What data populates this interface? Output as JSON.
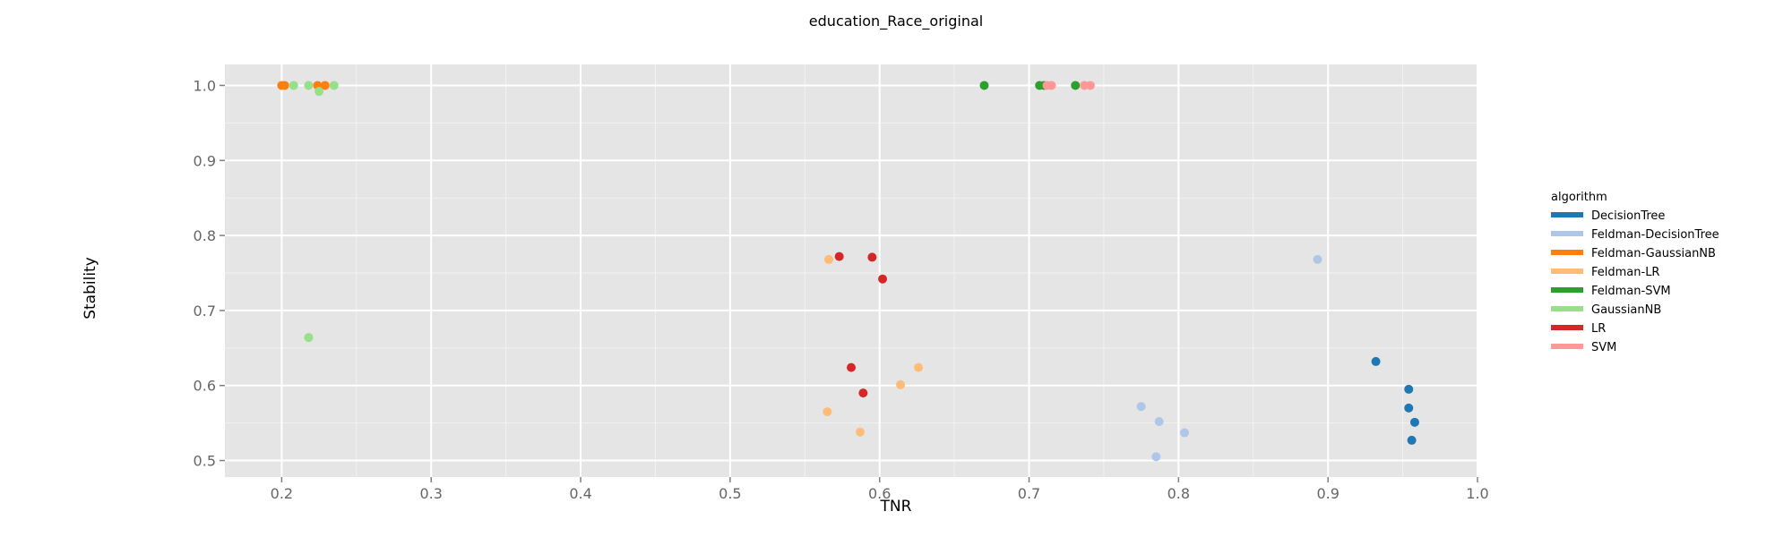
{
  "chart_data": {
    "type": "scatter",
    "title": "education_Race_original",
    "xlabel": "TNR",
    "ylabel": "Stability",
    "xlim": [
      0.162,
      1.0
    ],
    "ylim": [
      0.478,
      1.028
    ],
    "x_ticks": [
      "0.2",
      "0.3",
      "0.4",
      "0.5",
      "0.6",
      "0.7",
      "0.8",
      "0.9",
      "1.0"
    ],
    "y_ticks": [
      "0.5",
      "0.6",
      "0.7",
      "0.8",
      "0.9",
      "1.0"
    ],
    "grid": true,
    "legend": {
      "title": "algorithm",
      "position": "right"
    },
    "series": [
      {
        "name": "DecisionTree",
        "color": "#1f77b4",
        "points": [
          [
            0.932,
            0.632
          ],
          [
            0.954,
            0.595
          ],
          [
            0.954,
            0.57
          ],
          [
            0.958,
            0.551
          ],
          [
            0.956,
            0.527
          ]
        ]
      },
      {
        "name": "Feldman-DecisionTree",
        "color": "#aec7e8",
        "points": [
          [
            0.893,
            0.768
          ],
          [
            0.775,
            0.572
          ],
          [
            0.787,
            0.552
          ],
          [
            0.804,
            0.537
          ],
          [
            0.785,
            0.505
          ]
        ]
      },
      {
        "name": "Feldman-GaussianNB",
        "color": "#ff7f0e",
        "points": [
          [
            0.2,
            1.0
          ],
          [
            0.202,
            1.0
          ],
          [
            0.224,
            1.0
          ],
          [
            0.229,
            1.0
          ]
        ]
      },
      {
        "name": "Feldman-LR",
        "color": "#ffbb78",
        "points": [
          [
            0.566,
            0.768
          ],
          [
            0.626,
            0.624
          ],
          [
            0.614,
            0.601
          ],
          [
            0.565,
            0.565
          ],
          [
            0.587,
            0.538
          ]
        ]
      },
      {
        "name": "Feldman-SVM",
        "color": "#2ca02c",
        "points": [
          [
            0.67,
            1.0
          ],
          [
            0.707,
            1.0
          ],
          [
            0.71,
            1.0
          ],
          [
            0.731,
            1.0
          ]
        ]
      },
      {
        "name": "GaussianNB",
        "color": "#98df8a",
        "points": [
          [
            0.208,
            1.0
          ],
          [
            0.218,
            1.0
          ],
          [
            0.235,
            1.0
          ],
          [
            0.225,
            0.992
          ],
          [
            0.218,
            0.664
          ]
        ]
      },
      {
        "name": "LR",
        "color": "#d62728",
        "points": [
          [
            0.573,
            0.772
          ],
          [
            0.595,
            0.771
          ],
          [
            0.602,
            0.742
          ],
          [
            0.581,
            0.624
          ],
          [
            0.589,
            0.59
          ]
        ]
      },
      {
        "name": "SVM",
        "color": "#ff9896",
        "points": [
          [
            0.712,
            1.0
          ],
          [
            0.715,
            1.0
          ],
          [
            0.737,
            1.0
          ],
          [
            0.741,
            1.0
          ]
        ]
      }
    ]
  }
}
